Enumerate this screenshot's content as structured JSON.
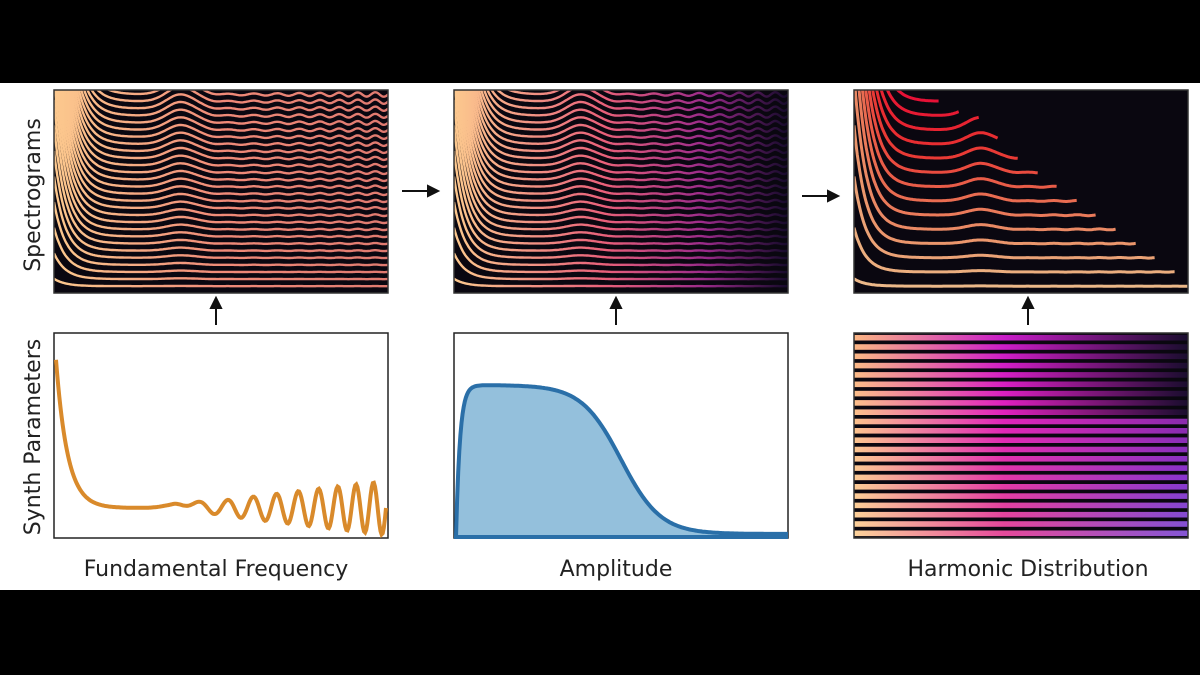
{
  "row_labels": [
    "Spectrograms",
    "Synth Parameters"
  ],
  "panel_labels": [
    "Fundamental Frequency",
    "Amplitude",
    "Harmonic Distribution"
  ]
}
